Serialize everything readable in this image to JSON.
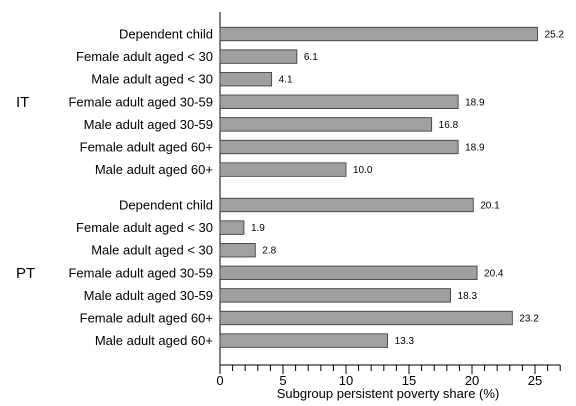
{
  "chart_data": {
    "type": "bar",
    "orientation": "horizontal",
    "title": "",
    "xlabel": "Subgroup persistent poverty share (%)",
    "ylabel": "",
    "xlim": [
      0,
      27
    ],
    "x_ticks": [
      0,
      5,
      10,
      15,
      20,
      25
    ],
    "grid": false,
    "bar_color": "#a0a0a0",
    "groups": [
      {
        "name": "IT",
        "categories": [
          "Dependent child",
          "Female adult aged < 30",
          "Male adult aged < 30",
          "Female adult aged 30-59",
          "Male adult aged 30-59",
          "Female adult aged 60+",
          "Male adult aged 60+"
        ],
        "values": [
          25.2,
          6.1,
          4.1,
          18.9,
          16.8,
          18.9,
          10.0
        ],
        "value_labels": [
          "25.2",
          "6.1",
          "4.1",
          "18.9",
          "16.8",
          "18.9",
          "10.0"
        ]
      },
      {
        "name": "PT",
        "categories": [
          "Dependent child",
          "Female adult aged < 30",
          "Male adult aged < 30",
          "Female adult aged 30-59",
          "Male adult aged 30-59",
          "Female adult aged 60+",
          "Male adult aged 60+"
        ],
        "values": [
          20.1,
          1.9,
          2.8,
          20.4,
          18.3,
          23.2,
          13.3
        ],
        "value_labels": [
          "20.1",
          "1.9",
          "2.8",
          "20.4",
          "18.3",
          "23.2",
          "13.3"
        ]
      }
    ]
  }
}
